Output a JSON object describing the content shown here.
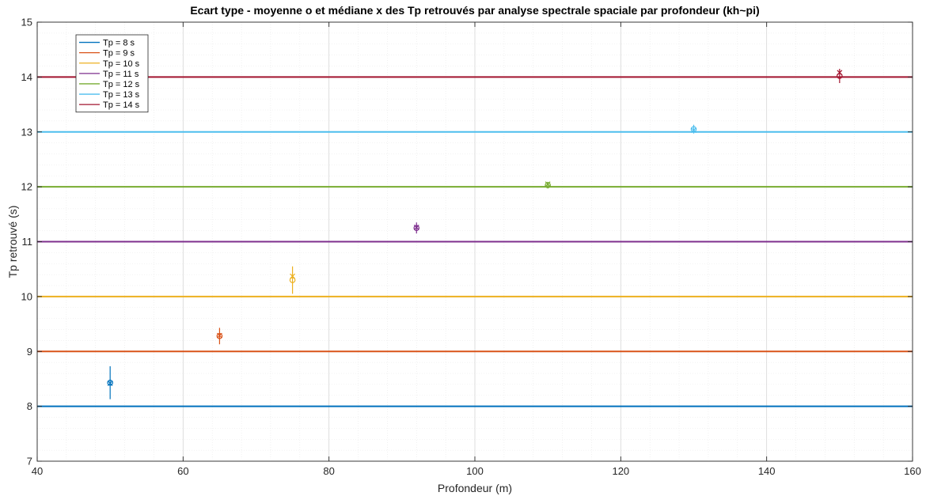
{
  "chart_data": {
    "type": "line",
    "title": "Ecart type - moyenne o et médiane x des Tp retrouvés par analyse spectrale spaciale par profondeur (kh~pi)",
    "xlabel": "Profondeur (m)",
    "ylabel": "Tp retrouvé (s)",
    "xlim": [
      40,
      160
    ],
    "ylim": [
      7,
      15
    ],
    "xticks": [
      40,
      60,
      80,
      100,
      120,
      140,
      160
    ],
    "yticks": [
      7,
      8,
      9,
      10,
      11,
      12,
      13,
      14,
      15
    ],
    "grid": true,
    "minor_grid": true,
    "legend_position": "top-left",
    "series": [
      {
        "name": "Tp = 8 s",
        "color": "#0072BD",
        "reference": 8,
        "depth": 50,
        "mean": 8.43,
        "median": 8.42,
        "std": 0.3
      },
      {
        "name": "Tp = 9 s",
        "color": "#D95319",
        "reference": 9,
        "depth": 65,
        "mean": 9.28,
        "median": 9.29,
        "std": 0.15
      },
      {
        "name": "Tp = 10 s",
        "color": "#EDB120",
        "reference": 10,
        "depth": 75,
        "mean": 10.3,
        "median": 10.37,
        "std": 0.25
      },
      {
        "name": "Tp = 11 s",
        "color": "#7E2F8E",
        "reference": 11,
        "depth": 92,
        "mean": 11.25,
        "median": 11.26,
        "std": 0.1
      },
      {
        "name": "Tp = 12 s",
        "color": "#77AC30",
        "reference": 12,
        "depth": 110,
        "mean": 12.03,
        "median": 12.05,
        "std": 0.06
      },
      {
        "name": "Tp = 13 s",
        "color": "#4DBEEE",
        "reference": 13,
        "depth": 130,
        "mean": 13.05,
        "median": 13.03,
        "std": 0.08
      },
      {
        "name": "Tp = 14 s",
        "color": "#A2142F",
        "reference": 14,
        "depth": 150,
        "mean": 14.02,
        "median": 14.08,
        "std": 0.13
      }
    ]
  }
}
